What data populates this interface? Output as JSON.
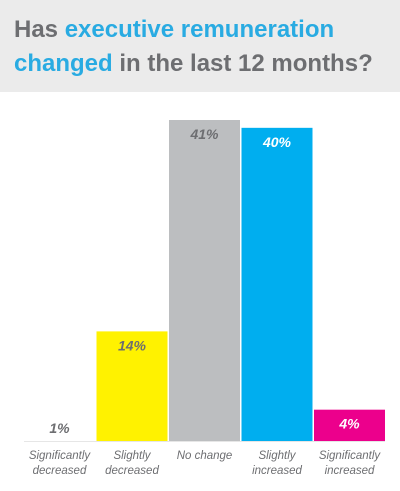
{
  "title": {
    "part1": "Has ",
    "part2": "executive remuneration",
    "part3": " ",
    "part4": "changed",
    "part5": " in the last 12 months?"
  },
  "colors": {
    "title_gray": "#6d6e71",
    "title_accent": "#29abe2",
    "header_bg": "#ebebeb"
  },
  "chart_data": {
    "type": "bar",
    "categories": [
      [
        "Significantly",
        "decreased"
      ],
      [
        "Slightly",
        "decreased"
      ],
      [
        "No change"
      ],
      [
        "Slightly",
        "increased"
      ],
      [
        "Significantly",
        "increased"
      ]
    ],
    "values": [
      1,
      14,
      41,
      40,
      4
    ],
    "value_labels": [
      "1%",
      "14%",
      "41%",
      "40%",
      "4%"
    ],
    "bar_colors": [
      "#ffffff",
      "#fff200",
      "#bcbec0",
      "#00aeef",
      "#ec008c"
    ],
    "label_colors": [
      "#6d6e71",
      "#6d6e71",
      "#6d6e71",
      "#ffffff",
      "#ffffff"
    ],
    "ylim": [
      0,
      41
    ],
    "grid": false
  }
}
